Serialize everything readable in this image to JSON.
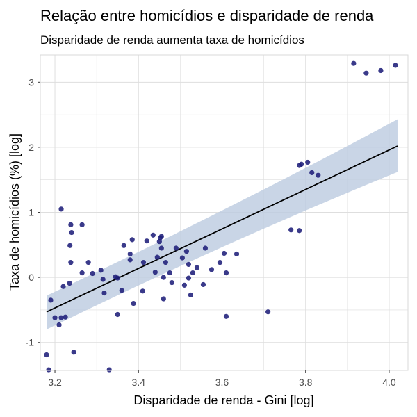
{
  "chart_data": {
    "type": "scatter",
    "title": "Relação entre homicídios e disparidade de renda",
    "subtitle": "Disparidade de renda aumenta taxa de homicídios",
    "xlabel": "Disparidade de renda - Gini [log]",
    "ylabel": "Taxa de homicídios (%) [log]",
    "xlim": [
      3.165,
      4.045
    ],
    "ylim": [
      -1.43,
      3.42
    ],
    "x_ticks": [
      3.2,
      3.4,
      3.6,
      3.8,
      4.0
    ],
    "x_tick_labels": [
      "3.2",
      "3.4",
      "3.6",
      "3.8",
      "4.0"
    ],
    "y_ticks": [
      -1,
      0,
      1,
      2,
      3
    ],
    "y_tick_labels": [
      "-1",
      "0",
      "1",
      "2",
      "3"
    ],
    "grid": true,
    "colors": {
      "points": "#1f1f7a",
      "line": "#000000",
      "band": "#bccbe0",
      "grid": "#dedede",
      "frame": "#d9d9d9"
    },
    "trend": {
      "x": [
        3.18,
        4.02
      ],
      "y": [
        -0.53,
        2.02
      ],
      "lower": [
        -0.8,
        1.62
      ],
      "upper": [
        -0.28,
        2.43
      ]
    },
    "points": [
      {
        "x": 3.18,
        "y": -1.19
      },
      {
        "x": 3.185,
        "y": -1.42
      },
      {
        "x": 3.19,
        "y": -0.35
      },
      {
        "x": 3.2,
        "y": -0.62
      },
      {
        "x": 3.21,
        "y": -0.73
      },
      {
        "x": 3.215,
        "y": -0.62
      },
      {
        "x": 3.225,
        "y": -0.61
      },
      {
        "x": 3.215,
        "y": 1.05
      },
      {
        "x": 3.22,
        "y": -0.14
      },
      {
        "x": 3.235,
        "y": -0.09
      },
      {
        "x": 3.238,
        "y": 0.81
      },
      {
        "x": 3.24,
        "y": 0.69
      },
      {
        "x": 3.236,
        "y": 0.49
      },
      {
        "x": 3.238,
        "y": 0.23
      },
      {
        "x": 3.245,
        "y": -1.15
      },
      {
        "x": 3.265,
        "y": 0.81
      },
      {
        "x": 3.265,
        "y": 0.07
      },
      {
        "x": 3.28,
        "y": 0.23
      },
      {
        "x": 3.29,
        "y": 0.06
      },
      {
        "x": 3.31,
        "y": 0.11
      },
      {
        "x": 3.315,
        "y": -0.03
      },
      {
        "x": 3.318,
        "y": -0.24
      },
      {
        "x": 3.33,
        "y": -1.42
      },
      {
        "x": 3.345,
        "y": 0.01
      },
      {
        "x": 3.35,
        "y": -0.01
      },
      {
        "x": 3.35,
        "y": -0.57
      },
      {
        "x": 3.36,
        "y": -0.2
      },
      {
        "x": 3.365,
        "y": 0.49
      },
      {
        "x": 3.38,
        "y": 0.36
      },
      {
        "x": 3.38,
        "y": 0.27
      },
      {
        "x": 3.385,
        "y": 0.58
      },
      {
        "x": 3.388,
        "y": -0.4
      },
      {
        "x": 3.41,
        "y": -0.21
      },
      {
        "x": 3.412,
        "y": 0.23
      },
      {
        "x": 3.42,
        "y": 0.56
      },
      {
        "x": 3.435,
        "y": 0.65
      },
      {
        "x": 3.44,
        "y": 0.08
      },
      {
        "x": 3.445,
        "y": 0.31
      },
      {
        "x": 3.45,
        "y": 0.55
      },
      {
        "x": 3.452,
        "y": 0.61
      },
      {
        "x": 3.455,
        "y": 0.63
      },
      {
        "x": 3.455,
        "y": 0.45
      },
      {
        "x": 3.46,
        "y": -0.33
      },
      {
        "x": 3.46,
        "y": 0.0
      },
      {
        "x": 3.465,
        "y": 0.23
      },
      {
        "x": 3.475,
        "y": 0.07
      },
      {
        "x": 3.48,
        "y": -0.08
      },
      {
        "x": 3.49,
        "y": 0.45
      },
      {
        "x": 3.505,
        "y": 0.3
      },
      {
        "x": 3.51,
        "y": -0.12
      },
      {
        "x": 3.515,
        "y": 0.4
      },
      {
        "x": 3.52,
        "y": 0.2
      },
      {
        "x": 3.52,
        "y": -0.01
      },
      {
        "x": 3.525,
        "y": -0.27
      },
      {
        "x": 3.53,
        "y": 0.07
      },
      {
        "x": 3.54,
        "y": 0.15
      },
      {
        "x": 3.555,
        "y": -0.11
      },
      {
        "x": 3.56,
        "y": 0.45
      },
      {
        "x": 3.575,
        "y": 0.12
      },
      {
        "x": 3.595,
        "y": 0.23
      },
      {
        "x": 3.605,
        "y": 0.37
      },
      {
        "x": 3.61,
        "y": 0.07
      },
      {
        "x": 3.61,
        "y": -0.6
      },
      {
        "x": 3.635,
        "y": 0.36
      },
      {
        "x": 3.71,
        "y": -0.53
      },
      {
        "x": 3.765,
        "y": 0.73
      },
      {
        "x": 3.785,
        "y": 0.72
      },
      {
        "x": 3.785,
        "y": 1.72
      },
      {
        "x": 3.79,
        "y": 1.74
      },
      {
        "x": 3.805,
        "y": 1.77
      },
      {
        "x": 3.815,
        "y": 1.61
      },
      {
        "x": 3.83,
        "y": 1.57
      },
      {
        "x": 3.915,
        "y": 3.29
      },
      {
        "x": 3.945,
        "y": 3.14
      },
      {
        "x": 3.98,
        "y": 3.18
      },
      {
        "x": 4.015,
        "y": 3.26
      }
    ]
  }
}
